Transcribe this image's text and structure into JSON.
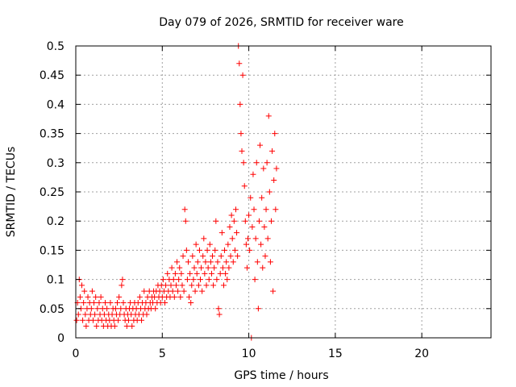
{
  "chart_data": {
    "type": "scatter",
    "title": "Day 079 of 2026, SRMTID for receiver ware",
    "xlabel": "GPS time / hours",
    "ylabel": "SRMTID / TECUs",
    "xlim": [
      0,
      24
    ],
    "ylim": [
      0,
      0.5
    ],
    "x_ticks": [
      0,
      5,
      10,
      15,
      20
    ],
    "y_ticks": [
      0,
      0.05,
      0.1,
      0.15,
      0.2,
      0.25,
      0.3,
      0.35,
      0.4,
      0.45,
      0.5
    ],
    "x_tick_labels": [
      "0",
      "5",
      "10",
      "15",
      "20"
    ],
    "y_tick_labels": [
      "0",
      "0.05",
      "0.1",
      "0.15",
      "0.2",
      "0.25",
      "0.3",
      "0.35",
      "0.4",
      "0.45",
      "0.5"
    ],
    "grid": true,
    "marker": "+",
    "series": [
      {
        "name": "SRMTID",
        "color": "#ff0000",
        "points": [
          [
            0.05,
            0.03
          ],
          [
            0.1,
            0.06
          ],
          [
            0.15,
            0.04
          ],
          [
            0.2,
            0.1
          ],
          [
            0.25,
            0.07
          ],
          [
            0.3,
            0.05
          ],
          [
            0.35,
            0.09
          ],
          [
            0.4,
            0.03
          ],
          [
            0.45,
            0.06
          ],
          [
            0.5,
            0.08
          ],
          [
            0.55,
            0.04
          ],
          [
            0.6,
            0.02
          ],
          [
            0.65,
            0.05
          ],
          [
            0.7,
            0.07
          ],
          [
            0.75,
            0.03
          ],
          [
            0.8,
            0.06
          ],
          [
            0.85,
            0.04
          ],
          [
            0.9,
            0.05
          ],
          [
            0.95,
            0.08
          ],
          [
            1.0,
            0.03
          ],
          [
            1.05,
            0.06
          ],
          [
            1.1,
            0.04
          ],
          [
            1.15,
            0.07
          ],
          [
            1.2,
            0.02
          ],
          [
            1.25,
            0.05
          ],
          [
            1.3,
            0.03
          ],
          [
            1.35,
            0.06
          ],
          [
            1.4,
            0.04
          ],
          [
            1.45,
            0.07
          ],
          [
            1.5,
            0.03
          ],
          [
            1.55,
            0.05
          ],
          [
            1.6,
            0.02
          ],
          [
            1.65,
            0.04
          ],
          [
            1.7,
            0.06
          ],
          [
            1.75,
            0.03
          ],
          [
            1.8,
            0.05
          ],
          [
            1.85,
            0.02
          ],
          [
            1.9,
            0.04
          ],
          [
            1.95,
            0.03
          ],
          [
            2.0,
            0.06
          ],
          [
            2.05,
            0.02
          ],
          [
            2.1,
            0.04
          ],
          [
            2.15,
            0.05
          ],
          [
            2.2,
            0.03
          ],
          [
            2.25,
            0.02
          ],
          [
            2.3,
            0.05
          ],
          [
            2.35,
            0.04
          ],
          [
            2.4,
            0.06
          ],
          [
            2.45,
            0.03
          ],
          [
            2.5,
            0.07
          ],
          [
            2.55,
            0.04
          ],
          [
            2.6,
            0.05
          ],
          [
            2.65,
            0.09
          ],
          [
            2.7,
            0.1
          ],
          [
            2.75,
            0.06
          ],
          [
            2.8,
            0.04
          ],
          [
            2.85,
            0.03
          ],
          [
            2.9,
            0.05
          ],
          [
            2.95,
            0.02
          ],
          [
            3.0,
            0.04
          ],
          [
            3.05,
            0.03
          ],
          [
            3.1,
            0.05
          ],
          [
            3.15,
            0.06
          ],
          [
            3.2,
            0.04
          ],
          [
            3.25,
            0.02
          ],
          [
            3.3,
            0.05
          ],
          [
            3.35,
            0.03
          ],
          [
            3.4,
            0.06
          ],
          [
            3.45,
            0.04
          ],
          [
            3.5,
            0.05
          ],
          [
            3.55,
            0.03
          ],
          [
            3.6,
            0.06
          ],
          [
            3.65,
            0.04
          ],
          [
            3.7,
            0.07
          ],
          [
            3.75,
            0.05
          ],
          [
            3.8,
            0.03
          ],
          [
            3.85,
            0.06
          ],
          [
            3.9,
            0.04
          ],
          [
            3.95,
            0.08
          ],
          [
            4.0,
            0.05
          ],
          [
            4.05,
            0.06
          ],
          [
            4.1,
            0.04
          ],
          [
            4.15,
            0.07
          ],
          [
            4.2,
            0.05
          ],
          [
            4.25,
            0.08
          ],
          [
            4.3,
            0.06
          ],
          [
            4.35,
            0.05
          ],
          [
            4.4,
            0.07
          ],
          [
            4.45,
            0.06
          ],
          [
            4.5,
            0.08
          ],
          [
            4.55,
            0.07
          ],
          [
            4.6,
            0.05
          ],
          [
            4.65,
            0.08
          ],
          [
            4.7,
            0.06
          ],
          [
            4.75,
            0.09
          ],
          [
            4.8,
            0.07
          ],
          [
            4.85,
            0.08
          ],
          [
            4.9,
            0.06
          ],
          [
            4.95,
            0.09
          ],
          [
            5.0,
            0.07
          ],
          [
            5.05,
            0.1
          ],
          [
            5.1,
            0.08
          ],
          [
            5.15,
            0.06
          ],
          [
            5.2,
            0.09
          ],
          [
            5.25,
            0.07
          ],
          [
            5.3,
            0.11
          ],
          [
            5.35,
            0.08
          ],
          [
            5.4,
            0.1
          ],
          [
            5.45,
            0.07
          ],
          [
            5.5,
            0.09
          ],
          [
            5.55,
            0.12
          ],
          [
            5.6,
            0.08
          ],
          [
            5.65,
            0.1
          ],
          [
            5.7,
            0.07
          ],
          [
            5.75,
            0.11
          ],
          [
            5.8,
            0.09
          ],
          [
            5.85,
            0.13
          ],
          [
            5.9,
            0.08
          ],
          [
            5.95,
            0.1
          ],
          [
            6.0,
            0.12
          ],
          [
            6.05,
            0.07
          ],
          [
            6.1,
            0.11
          ],
          [
            6.15,
            0.09
          ],
          [
            6.2,
            0.14
          ],
          [
            6.25,
            0.08
          ],
          [
            6.3,
            0.22
          ],
          [
            6.35,
            0.2
          ],
          [
            6.4,
            0.15
          ],
          [
            6.45,
            0.1
          ],
          [
            6.5,
            0.13
          ],
          [
            6.55,
            0.07
          ],
          [
            6.6,
            0.11
          ],
          [
            6.65,
            0.06
          ],
          [
            6.7,
            0.09
          ],
          [
            6.75,
            0.14
          ],
          [
            6.8,
            0.1
          ],
          [
            6.85,
            0.12
          ],
          [
            6.9,
            0.08
          ],
          [
            6.95,
            0.16
          ],
          [
            7.0,
            0.11
          ],
          [
            7.05,
            0.13
          ],
          [
            7.1,
            0.09
          ],
          [
            7.15,
            0.15
          ],
          [
            7.2,
            0.1
          ],
          [
            7.25,
            0.12
          ],
          [
            7.3,
            0.08
          ],
          [
            7.35,
            0.14
          ],
          [
            7.4,
            0.17
          ],
          [
            7.45,
            0.11
          ],
          [
            7.5,
            0.13
          ],
          [
            7.55,
            0.09
          ],
          [
            7.6,
            0.15
          ],
          [
            7.65,
            0.12
          ],
          [
            7.7,
            0.1
          ],
          [
            7.75,
            0.16
          ],
          [
            7.8,
            0.13
          ],
          [
            7.85,
            0.11
          ],
          [
            7.9,
            0.14
          ],
          [
            7.95,
            0.09
          ],
          [
            8.0,
            0.12
          ],
          [
            8.05,
            0.15
          ],
          [
            8.1,
            0.2
          ],
          [
            8.15,
            0.1
          ],
          [
            8.2,
            0.13
          ],
          [
            8.25,
            0.05
          ],
          [
            8.3,
            0.04
          ],
          [
            8.35,
            0.11
          ],
          [
            8.4,
            0.14
          ],
          [
            8.45,
            0.18
          ],
          [
            8.5,
            0.12
          ],
          [
            8.55,
            0.09
          ],
          [
            8.6,
            0.15
          ],
          [
            8.65,
            0.11
          ],
          [
            8.7,
            0.13
          ],
          [
            8.75,
            0.1
          ],
          [
            8.8,
            0.16
          ],
          [
            8.85,
            0.12
          ],
          [
            8.9,
            0.19
          ],
          [
            8.95,
            0.14
          ],
          [
            9.0,
            0.21
          ],
          [
            9.05,
            0.17
          ],
          [
            9.1,
            0.13
          ],
          [
            9.15,
            0.2
          ],
          [
            9.2,
            0.15
          ],
          [
            9.25,
            0.22
          ],
          [
            9.3,
            0.18
          ],
          [
            9.35,
            0.14
          ],
          [
            9.4,
            0.5
          ],
          [
            9.45,
            0.47
          ],
          [
            9.5,
            0.4
          ],
          [
            9.55,
            0.35
          ],
          [
            9.6,
            0.32
          ],
          [
            9.65,
            0.45
          ],
          [
            9.7,
            0.3
          ],
          [
            9.75,
            0.26
          ],
          [
            9.8,
            0.2
          ],
          [
            9.85,
            0.16
          ],
          [
            9.9,
            0.12
          ],
          [
            9.95,
            0.17
          ],
          [
            10.0,
            0.21
          ],
          [
            10.05,
            0.15
          ],
          [
            10.1,
            0.24
          ],
          [
            10.15,
            0.0
          ],
          [
            10.2,
            0.19
          ],
          [
            10.25,
            0.28
          ],
          [
            10.3,
            0.22
          ],
          [
            10.35,
            0.1
          ],
          [
            10.4,
            0.17
          ],
          [
            10.45,
            0.3
          ],
          [
            10.5,
            0.13
          ],
          [
            10.55,
            0.05
          ],
          [
            10.6,
            0.2
          ],
          [
            10.65,
            0.33
          ],
          [
            10.7,
            0.16
          ],
          [
            10.75,
            0.24
          ],
          [
            10.8,
            0.12
          ],
          [
            10.85,
            0.29
          ],
          [
            10.9,
            0.19
          ],
          [
            10.95,
            0.14
          ],
          [
            11.0,
            0.22
          ],
          [
            11.05,
            0.3
          ],
          [
            11.1,
            0.17
          ],
          [
            11.15,
            0.38
          ],
          [
            11.2,
            0.25
          ],
          [
            11.25,
            0.13
          ],
          [
            11.3,
            0.2
          ],
          [
            11.35,
            0.32
          ],
          [
            11.4,
            0.08
          ],
          [
            11.45,
            0.27
          ],
          [
            11.5,
            0.35
          ],
          [
            11.55,
            0.22
          ],
          [
            11.6,
            0.29
          ]
        ]
      }
    ]
  }
}
